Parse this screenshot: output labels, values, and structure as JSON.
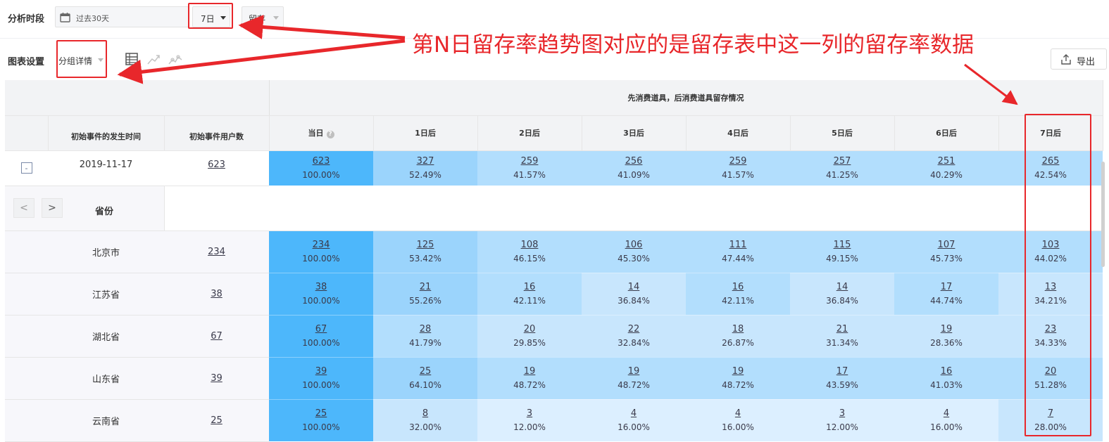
{
  "toolbar": {
    "period_label": "分析时段",
    "date_range": "过去30天",
    "interval": "7日",
    "type": "留存",
    "chart_settings_label": "图表设置",
    "group_mode": "分组详情",
    "export_label": "导出"
  },
  "annotation": {
    "text": "第N日留存率趋势图对应的是留存表中这一列的留存率数据"
  },
  "table": {
    "group_header": "先消费道具，后消费道具留存情况",
    "col_date": "初始事件的发生时间",
    "col_users": "初始事件用户数",
    "day_headers": [
      "当日",
      "1日后",
      "2日后",
      "3日后",
      "4日后",
      "5日后",
      "6日后",
      "7日后"
    ],
    "help_icon": "?",
    "total_row": {
      "toggle": "-",
      "date": "2019-11-17",
      "users": "623",
      "cells": [
        {
          "n": "623",
          "p": "100.00%"
        },
        {
          "n": "327",
          "p": "52.49%"
        },
        {
          "n": "259",
          "p": "41.57%"
        },
        {
          "n": "256",
          "p": "41.09%"
        },
        {
          "n": "259",
          "p": "41.57%"
        },
        {
          "n": "257",
          "p": "41.25%"
        },
        {
          "n": "251",
          "p": "40.29%"
        },
        {
          "n": "265",
          "p": "42.54%"
        }
      ]
    },
    "group_label": "省份",
    "pager_prev": "<",
    "pager_next": ">",
    "rows": [
      {
        "name": "北京市",
        "users": "234",
        "cells": [
          {
            "n": "234",
            "p": "100.00%"
          },
          {
            "n": "125",
            "p": "53.42%"
          },
          {
            "n": "108",
            "p": "46.15%"
          },
          {
            "n": "106",
            "p": "45.30%"
          },
          {
            "n": "111",
            "p": "47.44%"
          },
          {
            "n": "115",
            "p": "49.15%"
          },
          {
            "n": "107",
            "p": "45.73%"
          },
          {
            "n": "103",
            "p": "44.02%"
          }
        ]
      },
      {
        "name": "江苏省",
        "users": "38",
        "cells": [
          {
            "n": "38",
            "p": "100.00%"
          },
          {
            "n": "21",
            "p": "55.26%"
          },
          {
            "n": "16",
            "p": "42.11%"
          },
          {
            "n": "14",
            "p": "36.84%"
          },
          {
            "n": "16",
            "p": "42.11%"
          },
          {
            "n": "14",
            "p": "36.84%"
          },
          {
            "n": "17",
            "p": "44.74%"
          },
          {
            "n": "13",
            "p": "34.21%"
          }
        ]
      },
      {
        "name": "湖北省",
        "users": "67",
        "cells": [
          {
            "n": "67",
            "p": "100.00%"
          },
          {
            "n": "28",
            "p": "41.79%"
          },
          {
            "n": "20",
            "p": "29.85%"
          },
          {
            "n": "22",
            "p": "32.84%"
          },
          {
            "n": "18",
            "p": "26.87%"
          },
          {
            "n": "21",
            "p": "31.34%"
          },
          {
            "n": "19",
            "p": "28.36%"
          },
          {
            "n": "23",
            "p": "34.33%"
          }
        ]
      },
      {
        "name": "山东省",
        "users": "39",
        "cells": [
          {
            "n": "39",
            "p": "100.00%"
          },
          {
            "n": "25",
            "p": "64.10%"
          },
          {
            "n": "19",
            "p": "48.72%"
          },
          {
            "n": "19",
            "p": "48.72%"
          },
          {
            "n": "19",
            "p": "48.72%"
          },
          {
            "n": "17",
            "p": "43.59%"
          },
          {
            "n": "16",
            "p": "41.03%"
          },
          {
            "n": "20",
            "p": "51.28%"
          }
        ]
      },
      {
        "name": "云南省",
        "users": "25",
        "cells": [
          {
            "n": "25",
            "p": "100.00%"
          },
          {
            "n": "8",
            "p": "32.00%"
          },
          {
            "n": "3",
            "p": "12.00%"
          },
          {
            "n": "4",
            "p": "16.00%"
          },
          {
            "n": "4",
            "p": "16.00%"
          },
          {
            "n": "3",
            "p": "12.00%"
          },
          {
            "n": "4",
            "p": "16.00%"
          },
          {
            "n": "7",
            "p": "28.00%"
          }
        ]
      }
    ]
  },
  "colors": {
    "annotation_red": "#e8272b",
    "cell_full": "#4db7fb",
    "cell_high": "#9bd4fc",
    "cell_mid": "#b2defd",
    "cell_low": "#c8e6fd",
    "cell_lowest": "#dcefff"
  }
}
